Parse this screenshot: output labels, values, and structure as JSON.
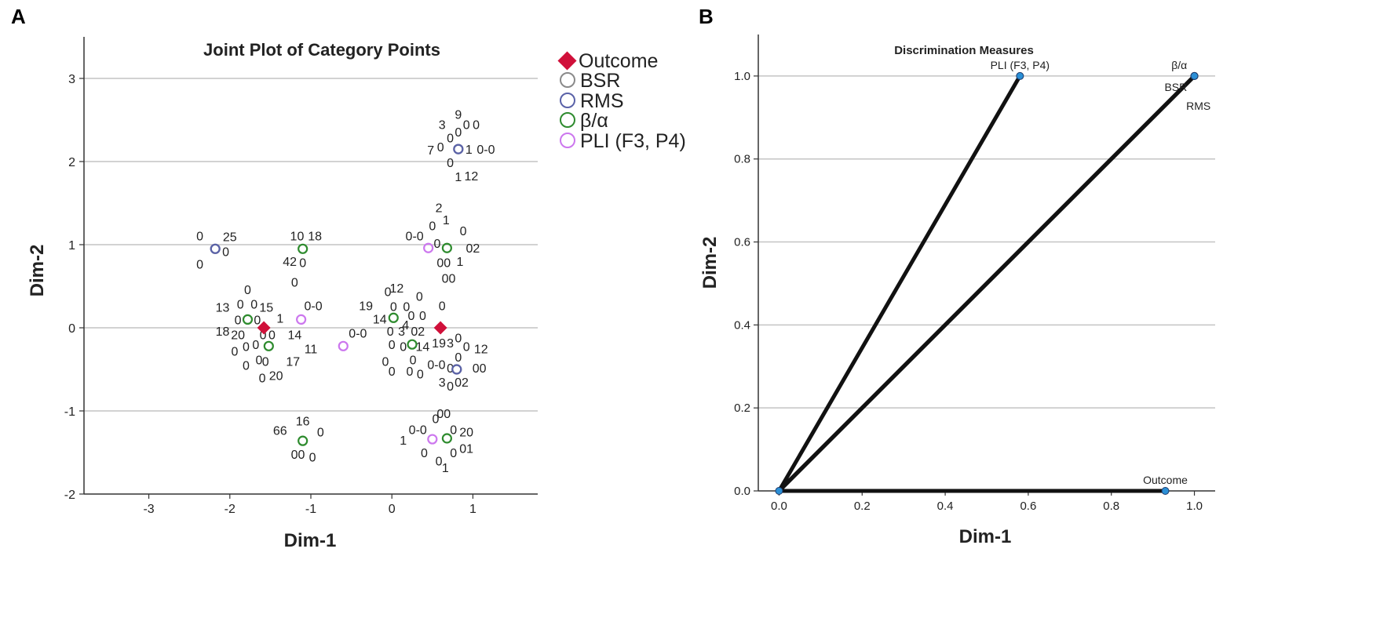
{
  "panels": {
    "a_letter": "A",
    "b_letter": "B"
  },
  "chart_data": [
    {
      "type": "scatter",
      "title": "Joint Plot of Category Points",
      "xlabel": "Dim-1",
      "ylabel": "Dim-2",
      "xlim": [
        -3.8,
        1.8
      ],
      "ylim": [
        -2,
        3.5
      ],
      "xticks": [
        "-3",
        "-2",
        "-1",
        "0",
        "1"
      ],
      "yticks": [
        "-2",
        "-1",
        "0",
        "1",
        "2",
        "3"
      ],
      "grid": "horizontal",
      "legend_position": "right",
      "colors": {
        "Outcome": "#d0103a",
        "BSR": "#8a8a8a",
        "RMS": "#5a62a8",
        "beta": "#2e8b2e",
        "PLI": "#cc77ee"
      },
      "series": [
        {
          "name": "Outcome",
          "marker": "diamond",
          "color": "#d0103a",
          "points": [
            [
              -1.58,
              0.0
            ],
            [
              0.6,
              0.0
            ]
          ]
        },
        {
          "name": "BSR",
          "marker": "circle",
          "color": "#8a8a8a",
          "points": [
            [
              -2.18,
              0.95
            ],
            [
              0.82,
              2.15
            ],
            [
              0.8,
              -0.5
            ]
          ]
        },
        {
          "name": "RMS",
          "marker": "circle",
          "color": "#5a62a8",
          "points": [
            [
              -2.18,
              0.95
            ],
            [
              0.82,
              2.15
            ],
            [
              0.8,
              -0.5
            ]
          ]
        },
        {
          "name": "β/α",
          "marker": "circle",
          "color": "#2e8b2e",
          "points": [
            [
              -1.1,
              0.95
            ],
            [
              -1.78,
              0.1
            ],
            [
              -1.52,
              -0.22
            ],
            [
              0.02,
              0.12
            ],
            [
              0.25,
              -0.2
            ],
            [
              0.68,
              0.96
            ],
            [
              -1.1,
              -1.36
            ],
            [
              0.68,
              -1.33
            ]
          ]
        },
        {
          "name": "PLI (F3, P4)",
          "marker": "circle",
          "color": "#cc77ee",
          "points": [
            [
              -1.12,
              0.1
            ],
            [
              -0.6,
              -0.22
            ],
            [
              0.45,
              0.96
            ],
            [
              0.5,
              -1.34
            ]
          ]
        }
      ],
      "category_labels": [
        {
          "t": "3",
          "x": 0.62,
          "y": 2.45
        },
        {
          "t": "9",
          "x": 0.82,
          "y": 2.57
        },
        {
          "t": "0",
          "x": 0.92,
          "y": 2.45
        },
        {
          "t": "0",
          "x": 1.04,
          "y": 2.45
        },
        {
          "t": "0",
          "x": 0.72,
          "y": 2.29
        },
        {
          "t": "0",
          "x": 0.82,
          "y": 2.36
        },
        {
          "t": "7",
          "x": 0.48,
          "y": 2.14
        },
        {
          "t": "0",
          "x": 0.6,
          "y": 2.18
        },
        {
          "t": "1",
          "x": 0.95,
          "y": 2.15
        },
        {
          "t": "0-0",
          "x": 1.16,
          "y": 2.15
        },
        {
          "t": "0",
          "x": 0.72,
          "y": 1.99
        },
        {
          "t": "1",
          "x": 0.82,
          "y": 1.82
        },
        {
          "t": "12",
          "x": 0.98,
          "y": 1.83
        },
        {
          "t": "0",
          "x": -2.37,
          "y": 1.11
        },
        {
          "t": "25",
          "x": -2.0,
          "y": 1.1
        },
        {
          "t": "0",
          "x": -2.05,
          "y": 0.92
        },
        {
          "t": "0",
          "x": -2.37,
          "y": 0.77
        },
        {
          "t": "10",
          "x": -1.17,
          "y": 1.11
        },
        {
          "t": "18",
          "x": -0.95,
          "y": 1.11
        },
        {
          "t": "42",
          "x": -1.26,
          "y": 0.8
        },
        {
          "t": "0",
          "x": -1.1,
          "y": 0.79
        },
        {
          "t": "0",
          "x": -1.2,
          "y": 0.55
        },
        {
          "t": "2",
          "x": 0.58,
          "y": 1.45
        },
        {
          "t": "1",
          "x": 0.67,
          "y": 1.3
        },
        {
          "t": "0",
          "x": 0.5,
          "y": 1.23
        },
        {
          "t": "0",
          "x": 0.88,
          "y": 1.17
        },
        {
          "t": "0-0",
          "x": 0.28,
          "y": 1.11
        },
        {
          "t": "0",
          "x": 0.56,
          "y": 1.02
        },
        {
          "t": "02",
          "x": 1.0,
          "y": 0.96
        },
        {
          "t": "00",
          "x": 0.64,
          "y": 0.79
        },
        {
          "t": "1",
          "x": 0.84,
          "y": 0.8
        },
        {
          "t": "00",
          "x": 0.7,
          "y": 0.6
        },
        {
          "t": "0",
          "x": -1.78,
          "y": 0.46
        },
        {
          "t": "0",
          "x": -1.87,
          "y": 0.29
        },
        {
          "t": "0",
          "x": -1.7,
          "y": 0.29
        },
        {
          "t": "15",
          "x": -1.55,
          "y": 0.25
        },
        {
          "t": "13",
          "x": -2.09,
          "y": 0.25
        },
        {
          "t": "1",
          "x": -1.38,
          "y": 0.12
        },
        {
          "t": "0",
          "x": -1.9,
          "y": 0.1
        },
        {
          "t": "0",
          "x": -1.66,
          "y": 0.1
        },
        {
          "t": "18",
          "x": -2.09,
          "y": -0.04
        },
        {
          "t": "20",
          "x": -1.9,
          "y": -0.08
        },
        {
          "t": "0",
          "x": -1.59,
          "y": -0.08
        },
        {
          "t": "0",
          "x": -1.48,
          "y": -0.08
        },
        {
          "t": "14",
          "x": -1.2,
          "y": -0.08
        },
        {
          "t": "0-0",
          "x": -0.97,
          "y": 0.27
        },
        {
          "t": "0",
          "x": -1.8,
          "y": -0.22
        },
        {
          "t": "0",
          "x": -1.68,
          "y": -0.2
        },
        {
          "t": "0",
          "x": -1.94,
          "y": -0.28
        },
        {
          "t": "11",
          "x": -1.0,
          "y": -0.25
        },
        {
          "t": "0",
          "x": -1.64,
          "y": -0.38
        },
        {
          "t": "0",
          "x": -1.56,
          "y": -0.4
        },
        {
          "t": "17",
          "x": -1.22,
          "y": -0.4
        },
        {
          "t": "0",
          "x": -1.8,
          "y": -0.45
        },
        {
          "t": "0",
          "x": -1.6,
          "y": -0.6
        },
        {
          "t": "20",
          "x": -1.43,
          "y": -0.57
        },
        {
          "t": "0-0",
          "x": -0.42,
          "y": -0.06
        },
        {
          "t": "0",
          "x": -0.05,
          "y": 0.44
        },
        {
          "t": "12",
          "x": 0.06,
          "y": 0.48
        },
        {
          "t": "0",
          "x": 0.02,
          "y": 0.26
        },
        {
          "t": "0",
          "x": 0.18,
          "y": 0.26
        },
        {
          "t": "0",
          "x": 0.34,
          "y": 0.38
        },
        {
          "t": "19",
          "x": -0.32,
          "y": 0.27
        },
        {
          "t": "0",
          "x": 0.24,
          "y": 0.15
        },
        {
          "t": "0",
          "x": 0.38,
          "y": 0.15
        },
        {
          "t": "14",
          "x": -0.15,
          "y": 0.11
        },
        {
          "t": "4",
          "x": 0.17,
          "y": 0.04
        },
        {
          "t": "0",
          "x": 0.62,
          "y": 0.27
        },
        {
          "t": "0",
          "x": -0.02,
          "y": -0.04
        },
        {
          "t": "3",
          "x": 0.12,
          "y": -0.04
        },
        {
          "t": "02",
          "x": 0.32,
          "y": -0.04
        },
        {
          "t": "0",
          "x": 0.0,
          "y": -0.2
        },
        {
          "t": "0",
          "x": 0.14,
          "y": -0.22
        },
        {
          "t": "14",
          "x": 0.38,
          "y": -0.22
        },
        {
          "t": "19",
          "x": 0.58,
          "y": -0.18
        },
        {
          "t": "3",
          "x": 0.72,
          "y": -0.18
        },
        {
          "t": "0",
          "x": 0.82,
          "y": -0.12
        },
        {
          "t": "0",
          "x": 0.92,
          "y": -0.22
        },
        {
          "t": "12",
          "x": 1.1,
          "y": -0.25
        },
        {
          "t": "0",
          "x": 0.82,
          "y": -0.35
        },
        {
          "t": "0",
          "x": -0.08,
          "y": -0.4
        },
        {
          "t": "0",
          "x": 0.26,
          "y": -0.38
        },
        {
          "t": "0-0",
          "x": 0.55,
          "y": -0.44
        },
        {
          "t": "0",
          "x": 0.72,
          "y": -0.48
        },
        {
          "t": "00",
          "x": 1.08,
          "y": -0.48
        },
        {
          "t": "0",
          "x": 0.22,
          "y": -0.52
        },
        {
          "t": "0",
          "x": 0.35,
          "y": -0.55
        },
        {
          "t": "3",
          "x": 0.62,
          "y": -0.65
        },
        {
          "t": "0",
          "x": 0.72,
          "y": -0.7
        },
        {
          "t": "02",
          "x": 0.86,
          "y": -0.65
        },
        {
          "t": "0",
          "x": 0.0,
          "y": -0.52
        },
        {
          "t": "16",
          "x": -1.1,
          "y": -1.12
        },
        {
          "t": "66",
          "x": -1.38,
          "y": -1.23
        },
        {
          "t": "0",
          "x": -0.88,
          "y": -1.25
        },
        {
          "t": "00",
          "x": -1.16,
          "y": -1.52
        },
        {
          "t": "0",
          "x": -0.98,
          "y": -1.55
        },
        {
          "t": "00",
          "x": 0.64,
          "y": -1.03
        },
        {
          "t": "0",
          "x": 0.54,
          "y": -1.09
        },
        {
          "t": "0-0",
          "x": 0.32,
          "y": -1.22
        },
        {
          "t": "0",
          "x": 0.76,
          "y": -1.22
        },
        {
          "t": "20",
          "x": 0.92,
          "y": -1.25
        },
        {
          "t": "1",
          "x": 0.14,
          "y": -1.35
        },
        {
          "t": "0",
          "x": 0.4,
          "y": -1.5
        },
        {
          "t": "0",
          "x": 0.76,
          "y": -1.5
        },
        {
          "t": "01",
          "x": 0.92,
          "y": -1.45
        },
        {
          "t": "0",
          "x": 0.58,
          "y": -1.6
        },
        {
          "t": "1",
          "x": 0.66,
          "y": -1.68
        }
      ]
    },
    {
      "type": "line",
      "title": "Discrimination Measures",
      "xlabel": "Dim-1",
      "ylabel": "Dim-2",
      "xlim": [
        -0.05,
        1.05
      ],
      "ylim": [
        0,
        1.1
      ],
      "xticks": [
        "0.0",
        "0.2",
        "0.4",
        "0.6",
        "0.8",
        "1.0"
      ],
      "yticks": [
        "0.0",
        "0.2",
        "0.4",
        "0.6",
        "0.8",
        "1.0"
      ],
      "grid": "horizontal",
      "series": [
        {
          "name": "PLI (F3, P4)",
          "x": [
            0,
            0.58
          ],
          "y": [
            0,
            1.0
          ]
        },
        {
          "name": "β/α",
          "x": [
            0,
            1.0
          ],
          "y": [
            0,
            1.0
          ]
        },
        {
          "name": "BSR",
          "x": [
            0,
            1.0
          ],
          "y": [
            0,
            1.0
          ]
        },
        {
          "name": "RMS",
          "x": [
            0,
            1.0
          ],
          "y": [
            0,
            1.0
          ]
        },
        {
          "name": "Outcome",
          "x": [
            0,
            0.93
          ],
          "y": [
            0,
            0.0
          ]
        }
      ],
      "point_labels": [
        {
          "t": "PLI (F3, P4)",
          "x": 0.58,
          "y": 1.0,
          "pos": "above"
        },
        {
          "t": "β/α",
          "x": 0.99,
          "y": 1.0,
          "pos": "above-left"
        },
        {
          "t": "BSR",
          "x": 0.99,
          "y": 1.0,
          "pos": "below-left"
        },
        {
          "t": "RMS",
          "x": 0.99,
          "y": 1.0,
          "pos": "below-right"
        },
        {
          "t": "Outcome",
          "x": 0.93,
          "y": 0.0,
          "pos": "above"
        }
      ],
      "colors": {
        "line": "#111111",
        "point_fill": "#2b8fd6",
        "point_stroke": "#1d3a6b"
      }
    }
  ]
}
